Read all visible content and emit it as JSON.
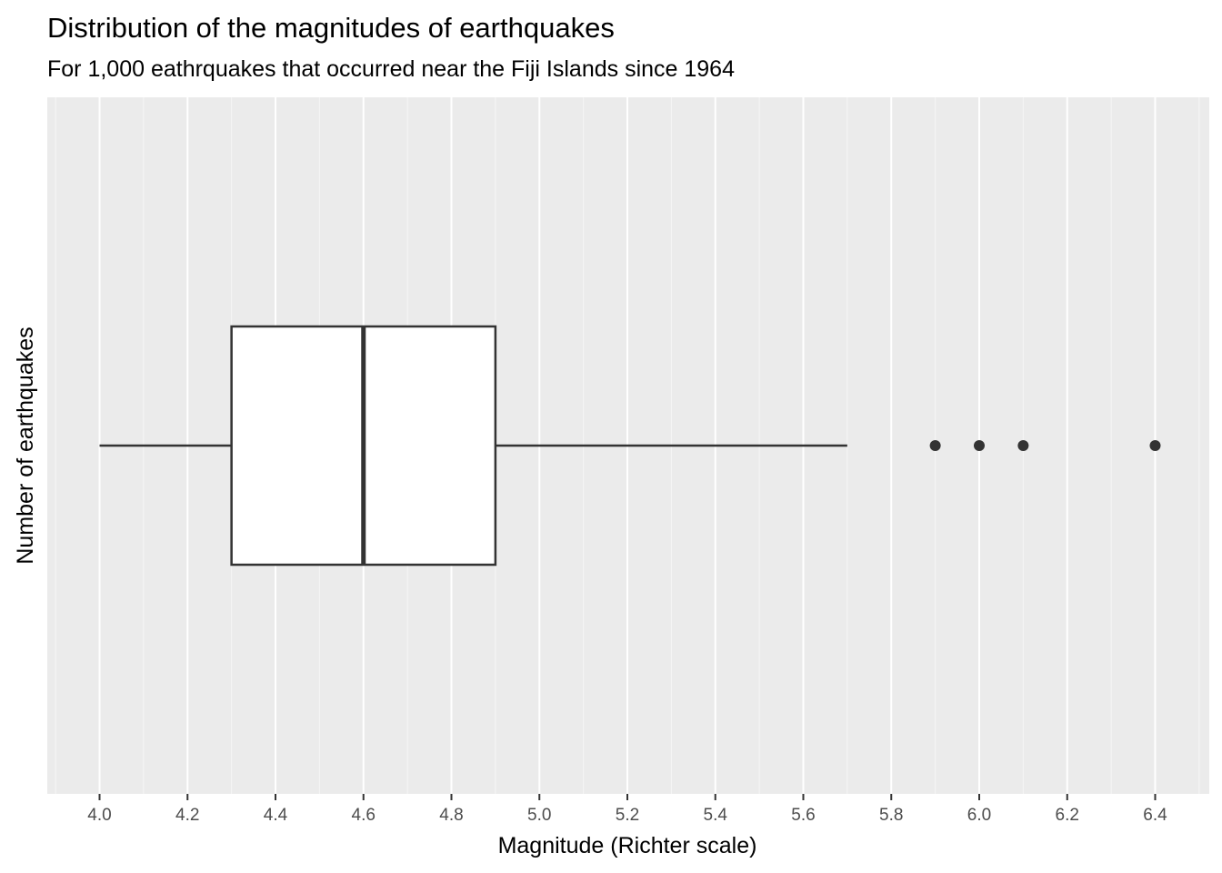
{
  "chart_data": {
    "type": "boxplot",
    "orientation": "horizontal",
    "title": "Distribution of the magnitudes of earthquakes",
    "subtitle": "For 1,000 eathrquakes that occurred near the Fiji Islands since 1964",
    "xlabel": "Magnitude (Richter scale)",
    "ylabel": "Number of earthquakes",
    "xlim": [
      3.9,
      6.5
    ],
    "x_ticks": [
      4.0,
      4.2,
      4.4,
      4.6,
      4.8,
      5.0,
      5.2,
      5.4,
      5.6,
      5.8,
      6.0,
      6.2,
      6.4
    ],
    "x_tick_labels": [
      "4.0",
      "4.2",
      "4.4",
      "4.6",
      "4.8",
      "5.0",
      "5.2",
      "5.4",
      "5.6",
      "5.8",
      "6.0",
      "6.2",
      "6.4"
    ],
    "grid": true,
    "box": {
      "whisker_low": 4.0,
      "q1": 4.3,
      "median": 4.6,
      "q3": 4.9,
      "whisker_high": 5.7,
      "outliers": [
        5.9,
        6.0,
        6.1,
        6.4
      ]
    },
    "colors": {
      "panel_background": "#ebebeb",
      "grid_major": "#ffffff",
      "box_fill": "#ffffff",
      "box_stroke": "#333333",
      "outlier": "#333333",
      "tick_label": "#4d4d4d"
    }
  }
}
